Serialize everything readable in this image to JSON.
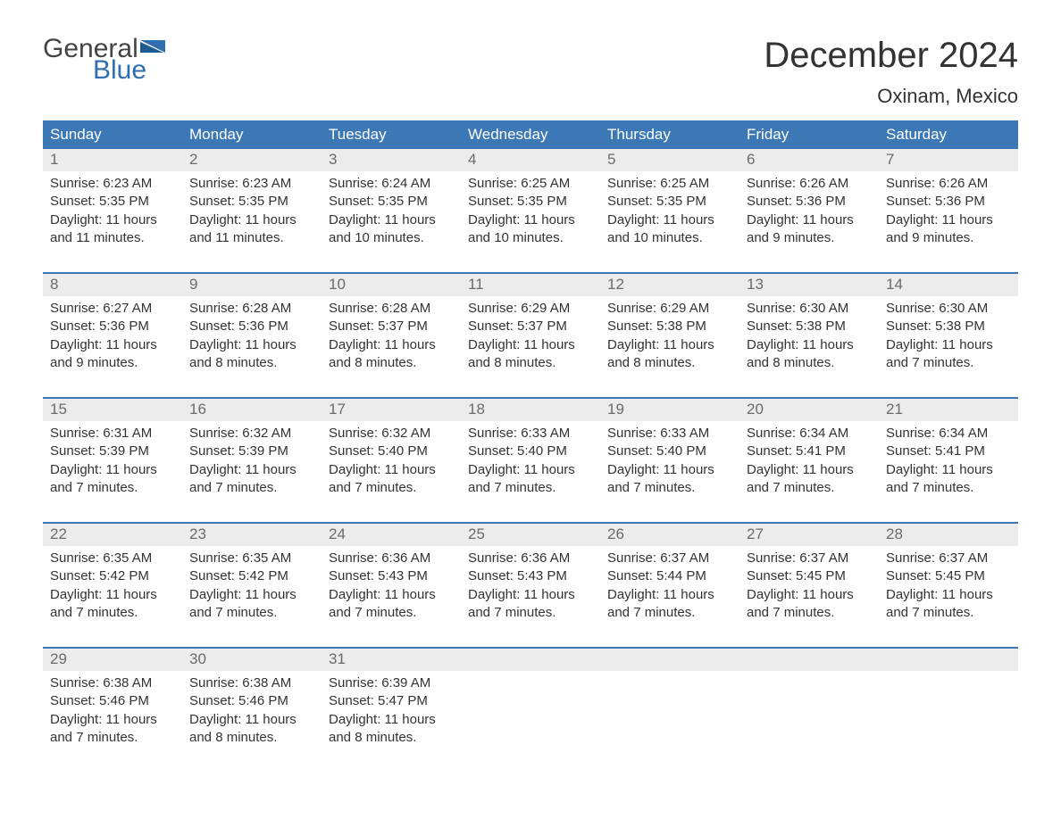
{
  "brand": {
    "general": "General",
    "blue": "Blue"
  },
  "title": "December 2024",
  "location": "Oxinam, Mexico",
  "colors": {
    "header_bg": "#3b78b5",
    "header_text": "#ffffff",
    "daynum_bg": "#ececec",
    "daynum_text": "#6b6b6b",
    "body_text": "#333333",
    "accent": "#2f6fb0",
    "divider": "#3b78b5",
    "background": "#ffffff"
  },
  "typography": {
    "title_fontsize": 40,
    "location_fontsize": 22,
    "header_fontsize": 17,
    "daynum_fontsize": 17,
    "body_fontsize": 15,
    "logo_fontsize": 30
  },
  "layout": {
    "columns": 7,
    "rows": 5,
    "grid_type": "calendar"
  },
  "day_headers": [
    "Sunday",
    "Monday",
    "Tuesday",
    "Wednesday",
    "Thursday",
    "Friday",
    "Saturday"
  ],
  "weeks": [
    [
      {
        "n": "1",
        "sunrise": "Sunrise: 6:23 AM",
        "sunset": "Sunset: 5:35 PM",
        "d1": "Daylight: 11 hours",
        "d2": "and 11 minutes."
      },
      {
        "n": "2",
        "sunrise": "Sunrise: 6:23 AM",
        "sunset": "Sunset: 5:35 PM",
        "d1": "Daylight: 11 hours",
        "d2": "and 11 minutes."
      },
      {
        "n": "3",
        "sunrise": "Sunrise: 6:24 AM",
        "sunset": "Sunset: 5:35 PM",
        "d1": "Daylight: 11 hours",
        "d2": "and 10 minutes."
      },
      {
        "n": "4",
        "sunrise": "Sunrise: 6:25 AM",
        "sunset": "Sunset: 5:35 PM",
        "d1": "Daylight: 11 hours",
        "d2": "and 10 minutes."
      },
      {
        "n": "5",
        "sunrise": "Sunrise: 6:25 AM",
        "sunset": "Sunset: 5:35 PM",
        "d1": "Daylight: 11 hours",
        "d2": "and 10 minutes."
      },
      {
        "n": "6",
        "sunrise": "Sunrise: 6:26 AM",
        "sunset": "Sunset: 5:36 PM",
        "d1": "Daylight: 11 hours",
        "d2": "and 9 minutes."
      },
      {
        "n": "7",
        "sunrise": "Sunrise: 6:26 AM",
        "sunset": "Sunset: 5:36 PM",
        "d1": "Daylight: 11 hours",
        "d2": "and 9 minutes."
      }
    ],
    [
      {
        "n": "8",
        "sunrise": "Sunrise: 6:27 AM",
        "sunset": "Sunset: 5:36 PM",
        "d1": "Daylight: 11 hours",
        "d2": "and 9 minutes."
      },
      {
        "n": "9",
        "sunrise": "Sunrise: 6:28 AM",
        "sunset": "Sunset: 5:36 PM",
        "d1": "Daylight: 11 hours",
        "d2": "and 8 minutes."
      },
      {
        "n": "10",
        "sunrise": "Sunrise: 6:28 AM",
        "sunset": "Sunset: 5:37 PM",
        "d1": "Daylight: 11 hours",
        "d2": "and 8 minutes."
      },
      {
        "n": "11",
        "sunrise": "Sunrise: 6:29 AM",
        "sunset": "Sunset: 5:37 PM",
        "d1": "Daylight: 11 hours",
        "d2": "and 8 minutes."
      },
      {
        "n": "12",
        "sunrise": "Sunrise: 6:29 AM",
        "sunset": "Sunset: 5:38 PM",
        "d1": "Daylight: 11 hours",
        "d2": "and 8 minutes."
      },
      {
        "n": "13",
        "sunrise": "Sunrise: 6:30 AM",
        "sunset": "Sunset: 5:38 PM",
        "d1": "Daylight: 11 hours",
        "d2": "and 8 minutes."
      },
      {
        "n": "14",
        "sunrise": "Sunrise: 6:30 AM",
        "sunset": "Sunset: 5:38 PM",
        "d1": "Daylight: 11 hours",
        "d2": "and 7 minutes."
      }
    ],
    [
      {
        "n": "15",
        "sunrise": "Sunrise: 6:31 AM",
        "sunset": "Sunset: 5:39 PM",
        "d1": "Daylight: 11 hours",
        "d2": "and 7 minutes."
      },
      {
        "n": "16",
        "sunrise": "Sunrise: 6:32 AM",
        "sunset": "Sunset: 5:39 PM",
        "d1": "Daylight: 11 hours",
        "d2": "and 7 minutes."
      },
      {
        "n": "17",
        "sunrise": "Sunrise: 6:32 AM",
        "sunset": "Sunset: 5:40 PM",
        "d1": "Daylight: 11 hours",
        "d2": "and 7 minutes."
      },
      {
        "n": "18",
        "sunrise": "Sunrise: 6:33 AM",
        "sunset": "Sunset: 5:40 PM",
        "d1": "Daylight: 11 hours",
        "d2": "and 7 minutes."
      },
      {
        "n": "19",
        "sunrise": "Sunrise: 6:33 AM",
        "sunset": "Sunset: 5:40 PM",
        "d1": "Daylight: 11 hours",
        "d2": "and 7 minutes."
      },
      {
        "n": "20",
        "sunrise": "Sunrise: 6:34 AM",
        "sunset": "Sunset: 5:41 PM",
        "d1": "Daylight: 11 hours",
        "d2": "and 7 minutes."
      },
      {
        "n": "21",
        "sunrise": "Sunrise: 6:34 AM",
        "sunset": "Sunset: 5:41 PM",
        "d1": "Daylight: 11 hours",
        "d2": "and 7 minutes."
      }
    ],
    [
      {
        "n": "22",
        "sunrise": "Sunrise: 6:35 AM",
        "sunset": "Sunset: 5:42 PM",
        "d1": "Daylight: 11 hours",
        "d2": "and 7 minutes."
      },
      {
        "n": "23",
        "sunrise": "Sunrise: 6:35 AM",
        "sunset": "Sunset: 5:42 PM",
        "d1": "Daylight: 11 hours",
        "d2": "and 7 minutes."
      },
      {
        "n": "24",
        "sunrise": "Sunrise: 6:36 AM",
        "sunset": "Sunset: 5:43 PM",
        "d1": "Daylight: 11 hours",
        "d2": "and 7 minutes."
      },
      {
        "n": "25",
        "sunrise": "Sunrise: 6:36 AM",
        "sunset": "Sunset: 5:43 PM",
        "d1": "Daylight: 11 hours",
        "d2": "and 7 minutes."
      },
      {
        "n": "26",
        "sunrise": "Sunrise: 6:37 AM",
        "sunset": "Sunset: 5:44 PM",
        "d1": "Daylight: 11 hours",
        "d2": "and 7 minutes."
      },
      {
        "n": "27",
        "sunrise": "Sunrise: 6:37 AM",
        "sunset": "Sunset: 5:45 PM",
        "d1": "Daylight: 11 hours",
        "d2": "and 7 minutes."
      },
      {
        "n": "28",
        "sunrise": "Sunrise: 6:37 AM",
        "sunset": "Sunset: 5:45 PM",
        "d1": "Daylight: 11 hours",
        "d2": "and 7 minutes."
      }
    ],
    [
      {
        "n": "29",
        "sunrise": "Sunrise: 6:38 AM",
        "sunset": "Sunset: 5:46 PM",
        "d1": "Daylight: 11 hours",
        "d2": "and 7 minutes."
      },
      {
        "n": "30",
        "sunrise": "Sunrise: 6:38 AM",
        "sunset": "Sunset: 5:46 PM",
        "d1": "Daylight: 11 hours",
        "d2": "and 8 minutes."
      },
      {
        "n": "31",
        "sunrise": "Sunrise: 6:39 AM",
        "sunset": "Sunset: 5:47 PM",
        "d1": "Daylight: 11 hours",
        "d2": "and 8 minutes."
      },
      null,
      null,
      null,
      null
    ]
  ]
}
